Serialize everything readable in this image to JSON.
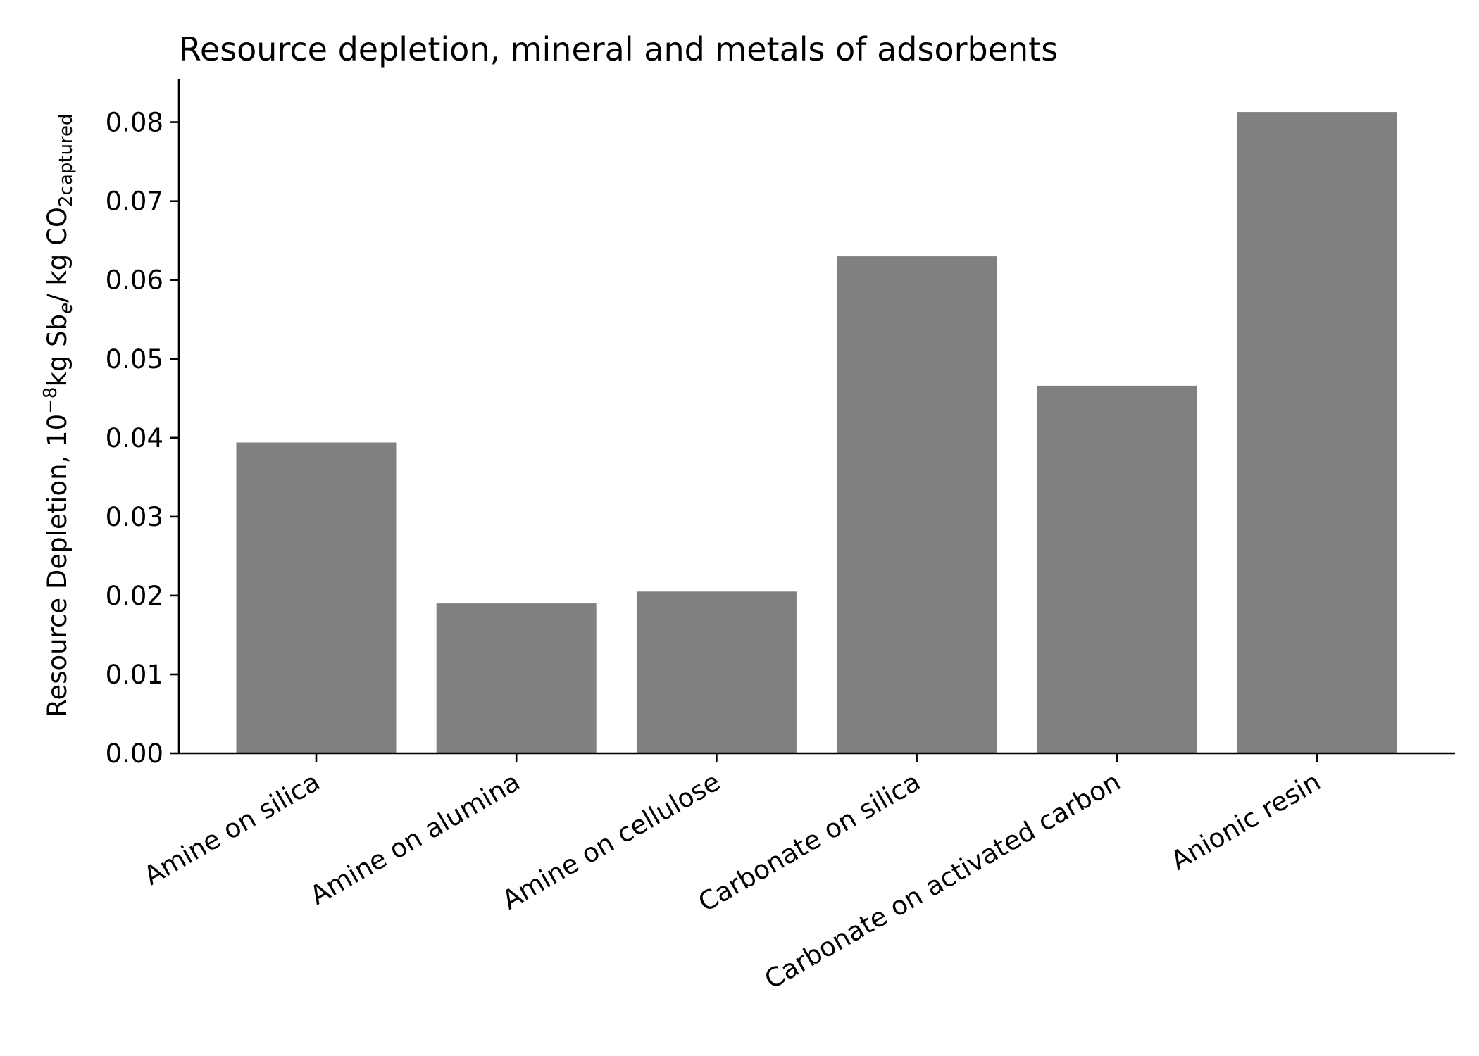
{
  "chart_data": {
    "type": "bar",
    "title": "Resource depletion, mineral and metals of adsorbents",
    "xlabel": "",
    "ylabel": {
      "prefix": "Resource Depletion, 10",
      "exponent": "−8",
      "unit_a": "kg Sb",
      "unit_a_sub": "e",
      "unit_b": "/ kg CO",
      "unit_b_sub": "2captured"
    },
    "categories": [
      "Amine on silica",
      "Amine on alumina",
      "Amine on cellulose",
      "Carbonate on silica",
      "Carbonate on activated carbon",
      "Anionic resin"
    ],
    "values": [
      0.0394,
      0.019,
      0.0205,
      0.063,
      0.0466,
      0.0813
    ],
    "ylim": [
      0,
      0.0855
    ],
    "yticks": [
      "0.00",
      "0.01",
      "0.02",
      "0.03",
      "0.04",
      "0.05",
      "0.06",
      "0.07",
      "0.08"
    ],
    "bar_color": "#808080",
    "grid": false,
    "legend": "none"
  }
}
